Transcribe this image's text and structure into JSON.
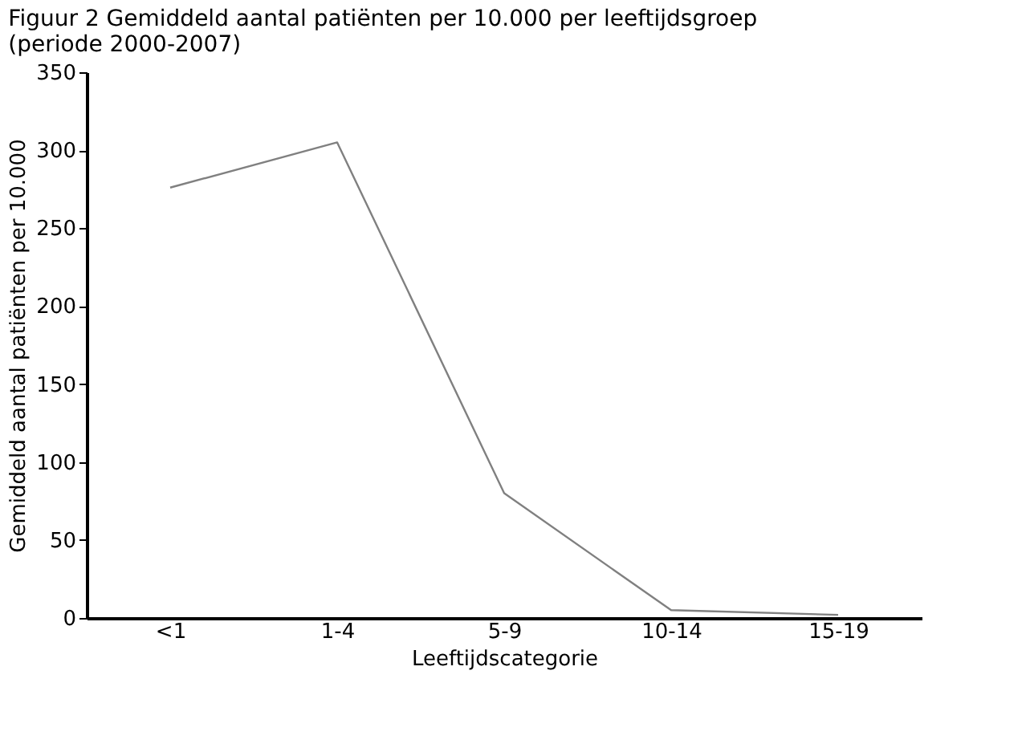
{
  "chart_data": {
    "type": "line",
    "title": "Figuur 2  Gemiddeld aantal patiënten per 10.000 per leeftijdsgroep (periode 2000-2007)",
    "xlabel": "Leeftijdscategorie",
    "ylabel": "Gemiddeld aantal patiënten per 10.000",
    "categories": [
      "<1",
      "1-4",
      "5-9",
      "10-14",
      "15-19"
    ],
    "series": [
      {
        "color": "#808080",
        "values": [
          276,
          305,
          80,
          5,
          2
        ]
      }
    ],
    "ylim": [
      0,
      350
    ],
    "yticks": [
      0,
      50,
      100,
      150,
      200,
      250,
      300,
      350
    ],
    "grid": false,
    "legend": false,
    "marker": "none",
    "line_style": "solid"
  }
}
